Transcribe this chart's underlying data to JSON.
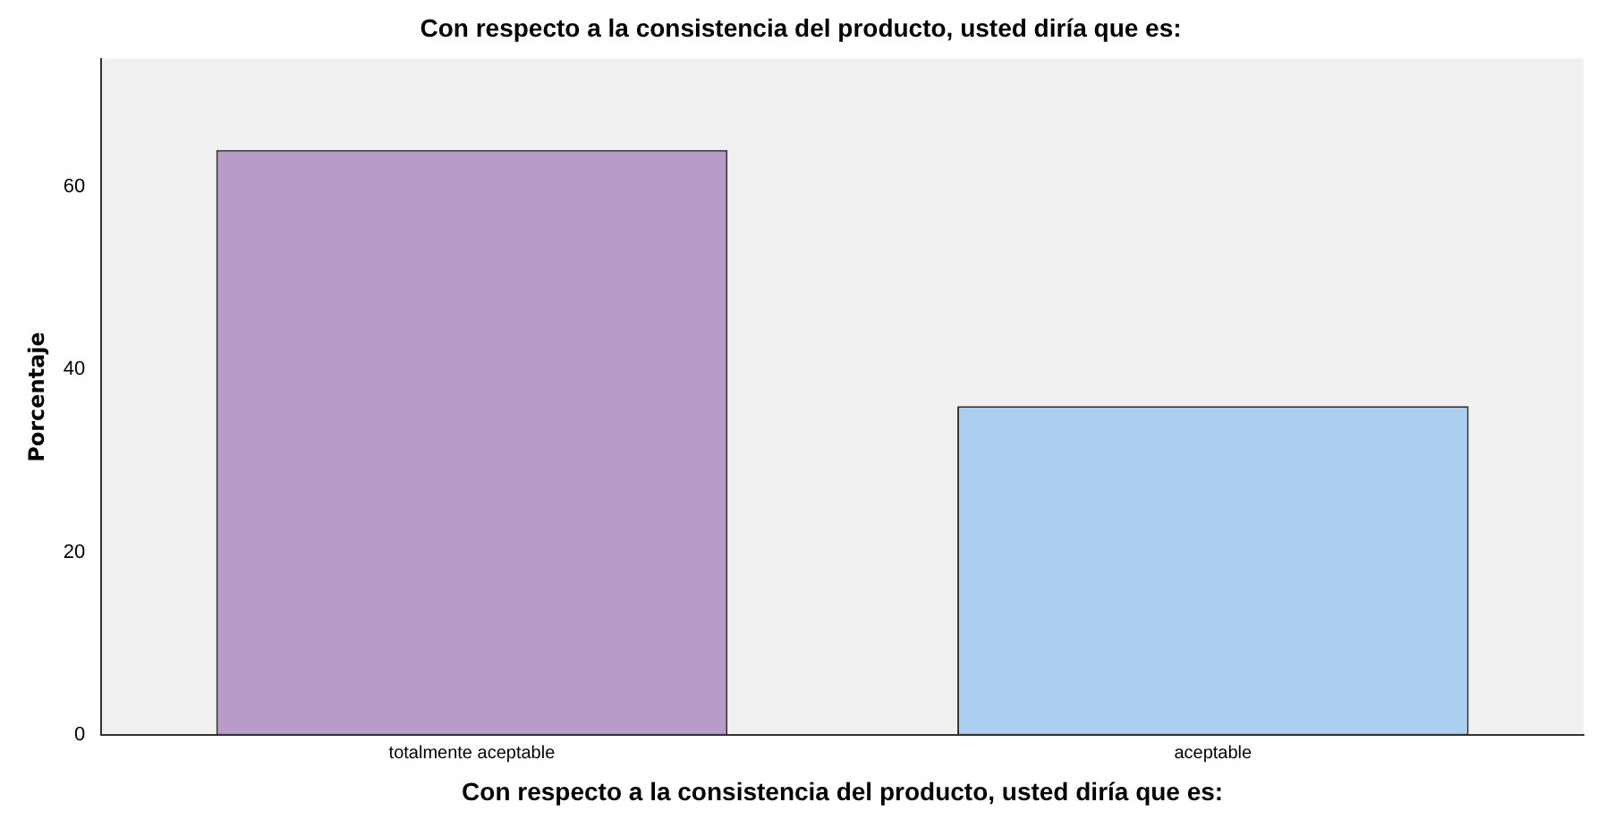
{
  "chart_data": {
    "type": "bar",
    "title": "Con respecto a la consistencia del producto, usted diría que es:",
    "xlabel": "Con respecto a la consistencia del producto, usted diría que es:",
    "ylabel": "Porcentaje",
    "categories": [
      "totalmente aceptable",
      "aceptable"
    ],
    "values": [
      64,
      36
    ],
    "colors": [
      "#b89bc9",
      "#abcfee"
    ],
    "ylim": [
      0,
      74
    ],
    "yticks": [
      0,
      20,
      40,
      60
    ],
    "grid": false,
    "legend": false
  }
}
